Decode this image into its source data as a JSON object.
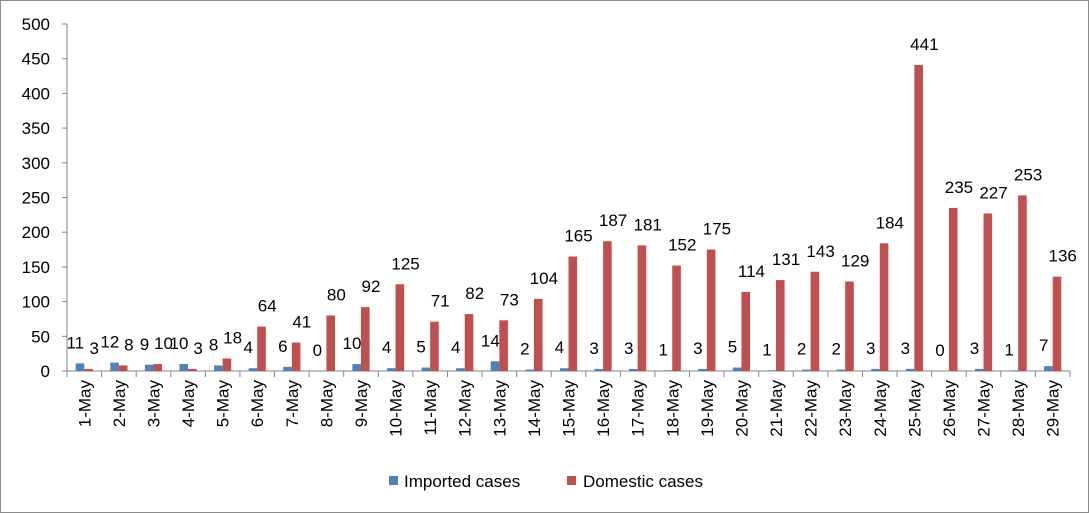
{
  "chart_data": {
    "type": "bar",
    "title": "",
    "xlabel": "",
    "ylabel": "",
    "ylim": [
      0,
      500
    ],
    "yticks": [
      0,
      50,
      100,
      150,
      200,
      250,
      300,
      350,
      400,
      450,
      500
    ],
    "grid": false,
    "legend_position": "bottom",
    "categories": [
      "1-May",
      "2-May",
      "3-May",
      "4-May",
      "5-May",
      "6-May",
      "7-May",
      "8-May",
      "9-May",
      "10-May",
      "11-May",
      "12-May",
      "13-May",
      "14-May",
      "15-May",
      "16-May",
      "17-May",
      "18-May",
      "19-May",
      "20-May",
      "21-May",
      "22-May",
      "23-May",
      "24-May",
      "25-May",
      "26-May",
      "27-May",
      "28-May",
      "29-May"
    ],
    "series": [
      {
        "name": "Imported cases",
        "color": "#4f81bd",
        "values": [
          11,
          12,
          9,
          10,
          8,
          4,
          6,
          0,
          10,
          4,
          5,
          4,
          14,
          2,
          4,
          3,
          3,
          1,
          3,
          5,
          1,
          2,
          2,
          3,
          3,
          0,
          3,
          1,
          7
        ]
      },
      {
        "name": "Domestic cases",
        "color": "#c0504d",
        "values": [
          3,
          8,
          10,
          3,
          18,
          64,
          41,
          80,
          92,
          125,
          71,
          82,
          73,
          104,
          165,
          187,
          181,
          152,
          175,
          114,
          131,
          143,
          129,
          184,
          441,
          235,
          227,
          253,
          136
        ]
      }
    ]
  }
}
